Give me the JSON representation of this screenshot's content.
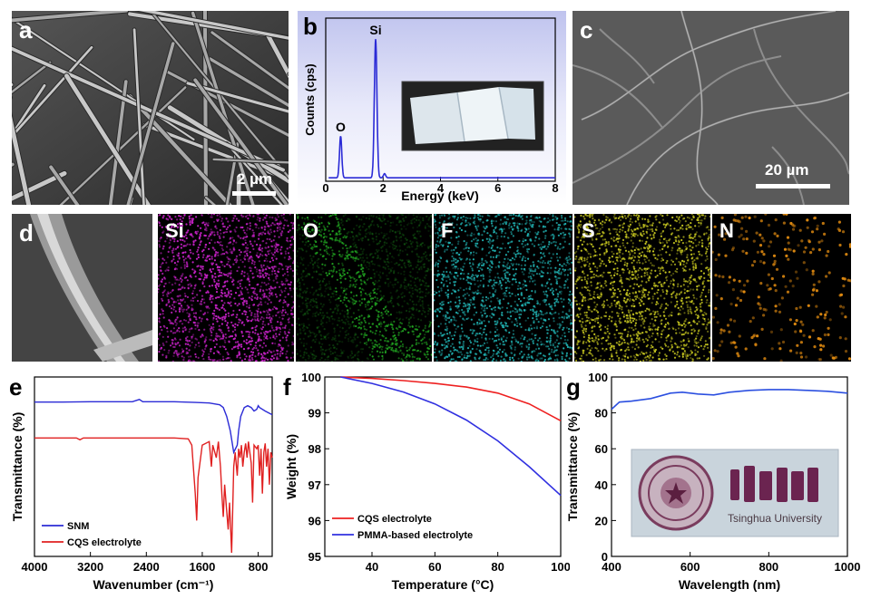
{
  "panels": {
    "a": {
      "label": "a",
      "scale_bar": "2 µm"
    },
    "b": {
      "label": "b"
    },
    "c": {
      "label": "c",
      "scale_bar": "20 µm"
    },
    "d": {
      "label": "d"
    },
    "e": {
      "label": "e"
    },
    "f": {
      "label": "f"
    },
    "g": {
      "label": "g"
    }
  },
  "element_maps": [
    {
      "label": "Si",
      "color": "#c020c0"
    },
    {
      "label": "O",
      "color": "#20a020"
    },
    {
      "label": "F",
      "color": "#20b0b0"
    },
    {
      "label": "S",
      "color": "#c8c820"
    },
    {
      "label": "N",
      "color": "#e08a10"
    }
  ],
  "photo_caption": "Tsinghua University",
  "chart_data": [
    {
      "panel": "b",
      "type": "line",
      "xlabel": "Energy (keV)",
      "ylabel": "Counts (cps)",
      "xlim": [
        0,
        8
      ],
      "xticks": [
        "0",
        "2",
        "4",
        "6",
        "8"
      ],
      "peaks": [
        {
          "label": "O",
          "x": 0.52,
          "rel": 0.3
        },
        {
          "label": "Si",
          "x": 1.74,
          "rel": 1.0
        },
        {
          "label": "",
          "x": 2.05,
          "rel": 0.03
        }
      ],
      "color": "#2b2bd6"
    },
    {
      "panel": "e",
      "type": "line",
      "xlabel": "Wavenumber (cm⁻¹)",
      "ylabel": "Transmittance (%)",
      "xlim": [
        4000,
        600
      ],
      "xticks": [
        "4000",
        "3200",
        "2400",
        "1600",
        "800"
      ],
      "series": [
        {
          "name": "SNM",
          "color": "#2b2bd6",
          "points": [
            [
              4000,
              0.86
            ],
            [
              3600,
              0.86
            ],
            [
              3200,
              0.862
            ],
            [
              2900,
              0.862
            ],
            [
              2600,
              0.862
            ],
            [
              2500,
              0.875
            ],
            [
              2450,
              0.862
            ],
            [
              2000,
              0.862
            ],
            [
              1700,
              0.858
            ],
            [
              1500,
              0.855
            ],
            [
              1350,
              0.845
            ],
            [
              1300,
              0.83
            ],
            [
              1250,
              0.78
            ],
            [
              1200,
              0.7
            ],
            [
              1150,
              0.58
            ],
            [
              1100,
              0.62
            ],
            [
              1080,
              0.7
            ],
            [
              1050,
              0.78
            ],
            [
              1000,
              0.83
            ],
            [
              950,
              0.84
            ],
            [
              900,
              0.83
            ],
            [
              860,
              0.81
            ],
            [
              820,
              0.82
            ],
            [
              800,
              0.84
            ],
            [
              780,
              0.83
            ],
            [
              700,
              0.81
            ],
            [
              650,
              0.8
            ],
            [
              600,
              0.79
            ]
          ]
        },
        {
          "name": "CQS electrolyte",
          "color": "#e02020",
          "points": [
            [
              4000,
              0.66
            ],
            [
              3400,
              0.66
            ],
            [
              3350,
              0.65
            ],
            [
              3300,
              0.66
            ],
            [
              2600,
              0.66
            ],
            [
              2000,
              0.66
            ],
            [
              1800,
              0.655
            ],
            [
              1750,
              0.62
            ],
            [
              1700,
              0.35
            ],
            [
              1680,
              0.2
            ],
            [
              1660,
              0.44
            ],
            [
              1600,
              0.62
            ],
            [
              1500,
              0.64
            ],
            [
              1470,
              0.5
            ],
            [
              1450,
              0.62
            ],
            [
              1400,
              0.55
            ],
            [
              1370,
              0.64
            ],
            [
              1340,
              0.5
            ],
            [
              1320,
              0.35
            ],
            [
              1300,
              0.22
            ],
            [
              1280,
              0.4
            ],
            [
              1250,
              0.25
            ],
            [
              1230,
              0.15
            ],
            [
              1210,
              0.3
            ],
            [
              1190,
              0.12
            ],
            [
              1180,
              0.02
            ],
            [
              1170,
              0.18
            ],
            [
              1150,
              0.5
            ],
            [
              1130,
              0.58
            ],
            [
              1100,
              0.45
            ],
            [
              1080,
              0.6
            ],
            [
              1060,
              0.55
            ],
            [
              1040,
              0.62
            ],
            [
              1020,
              0.5
            ],
            [
              1000,
              0.58
            ],
            [
              980,
              0.63
            ],
            [
              960,
              0.55
            ],
            [
              940,
              0.64
            ],
            [
              900,
              0.52
            ],
            [
              880,
              0.3
            ],
            [
              860,
              0.62
            ],
            [
              820,
              0.6
            ],
            [
              800,
              0.62
            ],
            [
              780,
              0.45
            ],
            [
              760,
              0.6
            ],
            [
              740,
              0.35
            ],
            [
              720,
              0.58
            ],
            [
              700,
              0.63
            ],
            [
              680,
              0.5
            ],
            [
              660,
              0.6
            ],
            [
              640,
              0.4
            ],
            [
              620,
              0.58
            ],
            [
              600,
              0.55
            ]
          ]
        }
      ],
      "legend": "bottom-left"
    },
    {
      "panel": "f",
      "type": "line",
      "xlabel": "Temperature (°C)",
      "ylabel": "Weight (%)",
      "xlim": [
        25,
        100
      ],
      "ylim": [
        95,
        100
      ],
      "xticks": [
        40,
        60,
        80,
        100
      ],
      "yticks": [
        95,
        96,
        97,
        98,
        99,
        100
      ],
      "series": [
        {
          "name": "CQS electrolyte",
          "color": "#ee2020",
          "x": [
            30,
            40,
            50,
            60,
            70,
            80,
            90,
            100
          ],
          "y": [
            100,
            99.96,
            99.9,
            99.82,
            99.72,
            99.55,
            99.25,
            98.78
          ]
        },
        {
          "name": "PMMA-based electrolyte",
          "color": "#3030e0",
          "x": [
            30,
            40,
            50,
            60,
            70,
            80,
            90,
            100
          ],
          "y": [
            100,
            99.82,
            99.58,
            99.25,
            98.8,
            98.22,
            97.5,
            96.7
          ]
        }
      ],
      "legend": "bottom-left"
    },
    {
      "panel": "g",
      "type": "line",
      "xlabel": "Wavelength (nm)",
      "ylabel": "Transmittance (%)",
      "xlim": [
        400,
        1000
      ],
      "ylim": [
        0,
        100
      ],
      "xticks": [
        400,
        600,
        800,
        1000
      ],
      "yticks": [
        0,
        20,
        40,
        60,
        80,
        100
      ],
      "series": [
        {
          "name": "",
          "color": "#2b4fe0",
          "x": [
            400,
            420,
            450,
            500,
            550,
            580,
            620,
            660,
            700,
            750,
            800,
            850,
            900,
            950,
            1000
          ],
          "y": [
            82,
            86,
            86.5,
            88,
            91,
            91.5,
            90.5,
            90,
            91.5,
            92.5,
            93,
            93,
            92.5,
            92,
            91
          ]
        }
      ]
    }
  ]
}
